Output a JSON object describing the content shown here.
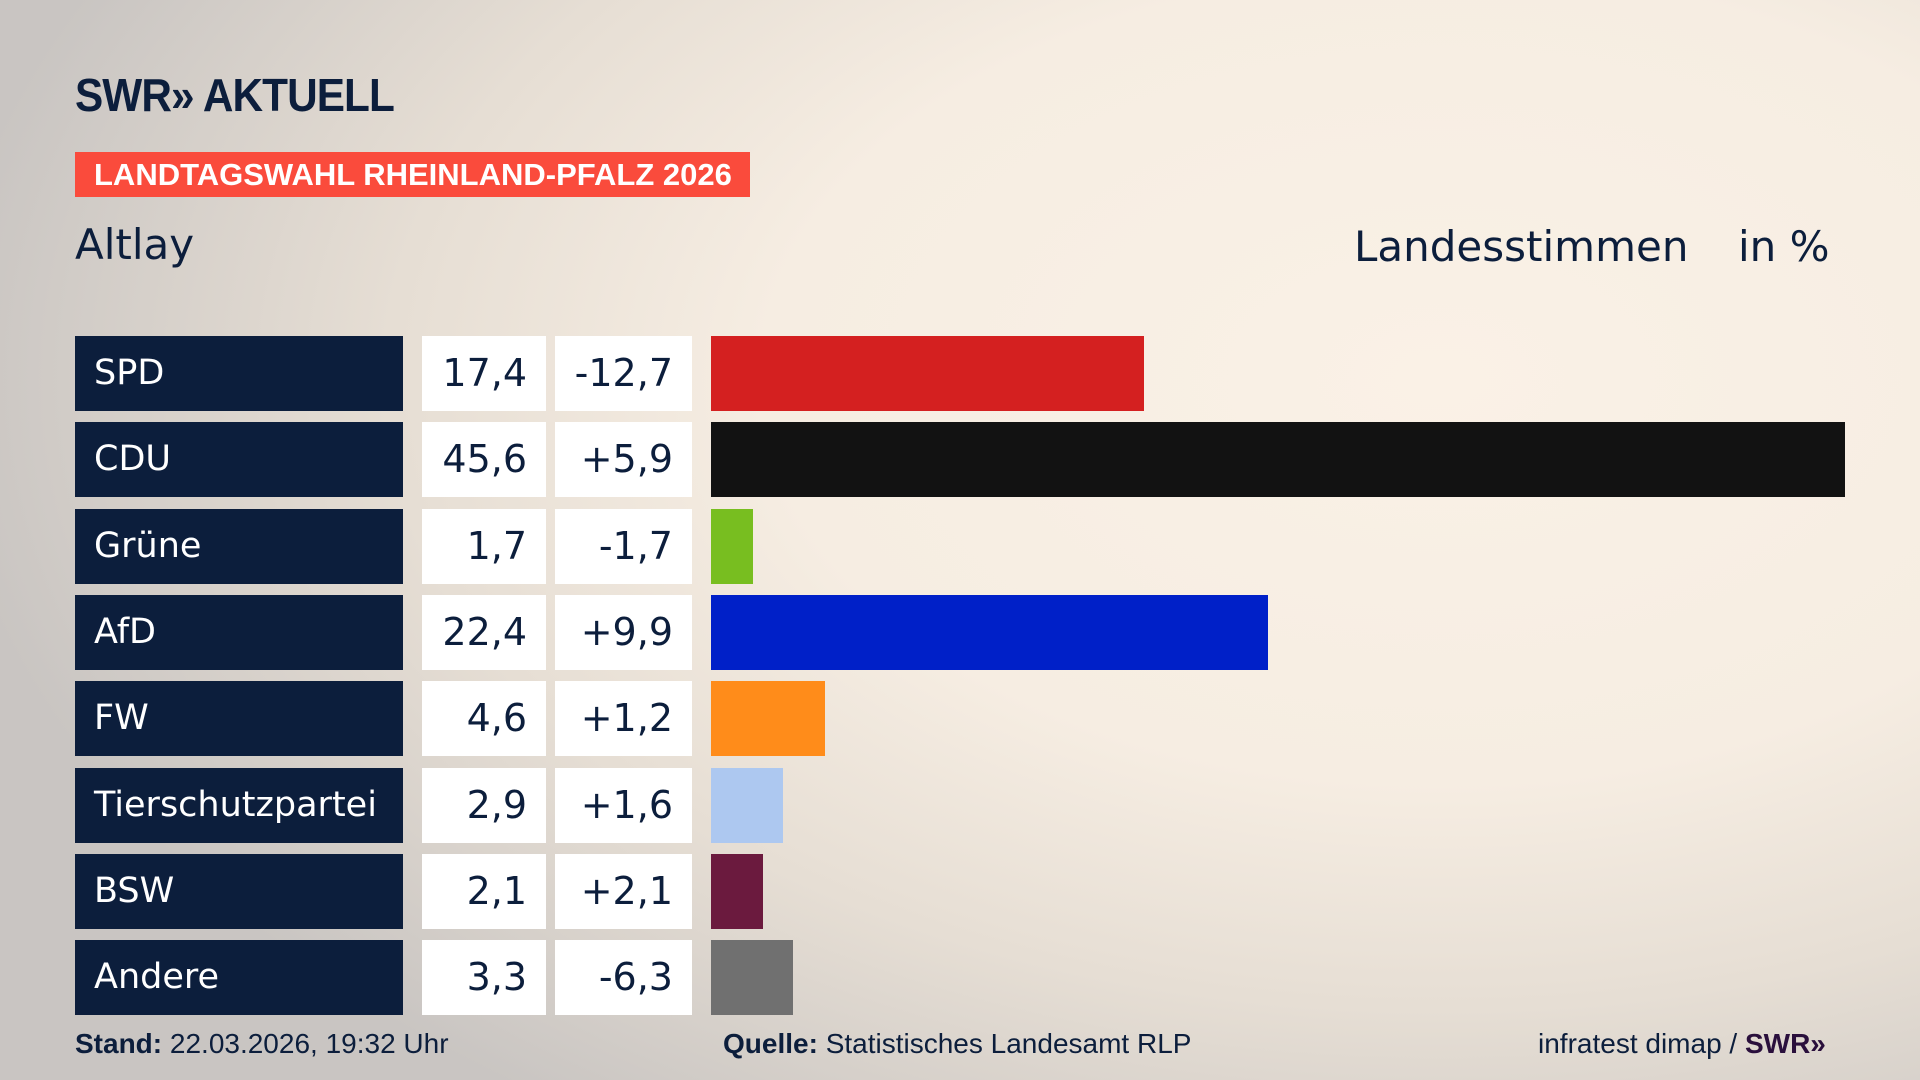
{
  "header": {
    "logo": "SWR» AKTUELL",
    "banner": "LANDTAGSWAHL RHEINLAND-PFALZ 2026",
    "place": "Altlay",
    "measure": "Landesstimmen",
    "unit": "in %"
  },
  "colors": {
    "navy": "#0c1e3c",
    "banner": "#fa4b3c"
  },
  "chart_data": {
    "type": "bar",
    "orientation": "horizontal",
    "categories": [
      "SPD",
      "CDU",
      "Grüne",
      "AfD",
      "FW",
      "Tierschutzpartei",
      "BSW",
      "Andere"
    ],
    "values": [
      17.4,
      45.6,
      1.7,
      22.4,
      4.6,
      2.9,
      2.1,
      3.3
    ],
    "value_labels": [
      "17,4",
      "45,6",
      "1,7",
      "22,4",
      "4,6",
      "2,9",
      "2,1",
      "3,3"
    ],
    "diff_labels": [
      "-12,7",
      "+5,9",
      "-1,7",
      "+9,9",
      "+1,2",
      "+1,6",
      "+2,1",
      "-6,3"
    ],
    "colors": [
      "#d42020",
      "#121212",
      "#78be20",
      "#0020c8",
      "#ff8c1a",
      "#adc8f0",
      "#6b1a3e",
      "#707070"
    ],
    "xlim": [
      0,
      45.6
    ],
    "grid": false
  },
  "footer": {
    "stand_label": "Stand:",
    "stand_value": "22.03.2026, 19:32 Uhr",
    "source_label": "Quelle:",
    "source_value": "Statistisches Landesamt RLP",
    "credit": "infratest dimap / ",
    "credit_brand": "SWR»"
  }
}
